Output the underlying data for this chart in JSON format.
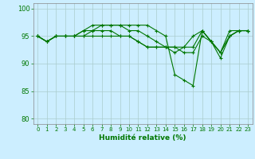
{
  "xlabel": "Humidité relative (%)",
  "background_color": "#cceeff",
  "grid_color": "#aacccc",
  "line_color": "#007700",
  "xlim": [
    -0.5,
    23.5
  ],
  "ylim": [
    79,
    101
  ],
  "yticks": [
    80,
    85,
    90,
    95,
    100
  ],
  "xticks": [
    0,
    1,
    2,
    3,
    4,
    5,
    6,
    7,
    8,
    9,
    10,
    11,
    12,
    13,
    14,
    15,
    16,
    17,
    18,
    19,
    20,
    21,
    22,
    23
  ],
  "series": [
    [
      95,
      94,
      95,
      95,
      95,
      96,
      97,
      97,
      97,
      97,
      97,
      97,
      97,
      96,
      95,
      88,
      87,
      86,
      96,
      94,
      91,
      95,
      96,
      96
    ],
    [
      95,
      94,
      95,
      95,
      95,
      96,
      96,
      97,
      97,
      97,
      96,
      96,
      95,
      94,
      93,
      93,
      93,
      93,
      96,
      94,
      92,
      96,
      96,
      96
    ],
    [
      95,
      94,
      95,
      95,
      95,
      95,
      96,
      96,
      96,
      95,
      95,
      94,
      93,
      93,
      93,
      92,
      93,
      95,
      96,
      94,
      92,
      95,
      96,
      96
    ],
    [
      95,
      94,
      95,
      95,
      95,
      95,
      95,
      95,
      95,
      95,
      95,
      94,
      93,
      93,
      93,
      93,
      92,
      92,
      95,
      94,
      92,
      95,
      96,
      96
    ]
  ]
}
